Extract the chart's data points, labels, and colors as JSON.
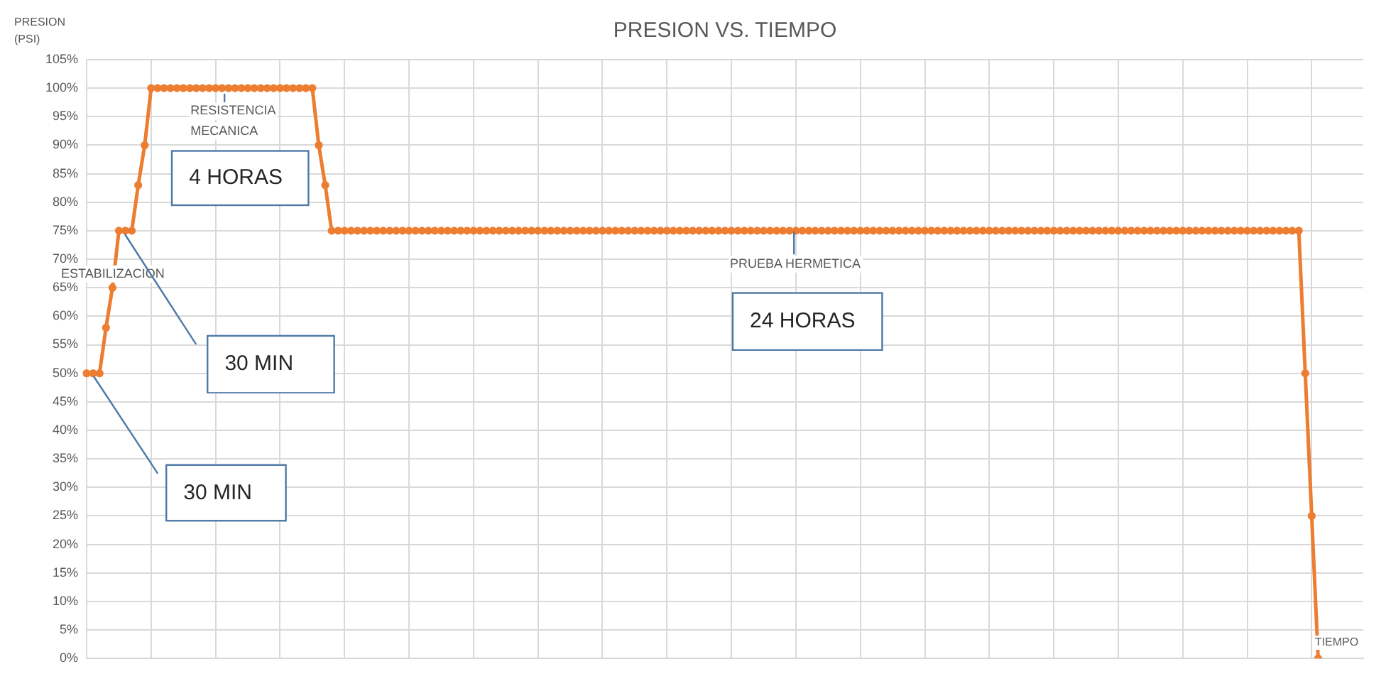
{
  "chart_data": {
    "type": "line",
    "title": "PRESION VS. TIEMPO",
    "ylabel": "PRESION (PSI)",
    "xlabel": "TIEMPO",
    "annotations": [
      "ESTABILIZACION",
      "RESISTENCIA MECANICA",
      "PRUEBA HERMETICA",
      "30 MIN",
      "30 MIN",
      "4 HORAS",
      "24 HORAS"
    ],
    "categories": [
      null,
      null,
      null,
      null,
      null,
      null,
      null,
      null,
      null,
      null,
      null,
      null,
      null,
      null,
      null,
      null,
      null,
      null,
      null,
      null,
      null,
      null,
      null,
      null,
      null,
      null,
      null,
      null,
      null,
      null,
      null,
      null,
      null,
      null,
      null,
      null,
      null,
      null,
      null,
      null,
      null,
      null,
      null,
      null,
      null,
      null,
      null,
      null,
      null,
      null,
      null,
      null,
      null,
      null,
      null,
      null,
      null,
      null,
      null,
      null,
      null,
      null,
      null,
      null,
      null,
      null,
      null,
      null,
      null,
      null,
      null,
      null,
      null,
      null,
      null,
      null,
      null,
      null,
      null,
      null,
      null,
      null,
      null,
      null,
      null,
      null,
      null,
      null,
      null,
      null,
      null,
      null,
      null,
      null,
      null,
      null,
      null,
      null,
      null,
      null,
      null,
      null,
      null,
      null,
      null,
      null,
      null,
      null,
      null,
      null,
      null,
      null,
      null,
      null,
      null,
      null,
      null,
      null,
      null,
      null,
      null,
      null,
      null,
      null,
      null,
      null,
      null,
      null,
      null,
      null,
      null,
      null,
      null,
      null,
      null,
      null,
      null,
      null,
      null,
      null,
      null,
      null,
      null,
      null,
      null,
      null,
      null,
      null,
      null,
      null,
      null,
      null,
      null,
      null,
      null,
      null,
      null,
      null,
      null,
      null,
      null,
      null,
      null,
      null,
      null,
      null,
      null,
      null,
      null,
      null,
      null,
      null,
      null,
      null,
      null,
      null,
      null,
      null,
      null,
      null,
      null,
      null,
      null,
      null,
      null,
      null,
      null,
      null,
      null,
      null,
      null,
      null,
      null,
      null,
      null,
      null,
      null,
      null,
      null
    ],
    "series": [
      {
        "color": "#ed7d31",
        "values": [
          50,
          50,
          50,
          58,
          65,
          75,
          75,
          75,
          83,
          90,
          100,
          100,
          100,
          100,
          100,
          100,
          100,
          100,
          100,
          100,
          100,
          100,
          100,
          100,
          100,
          100,
          100,
          100,
          100,
          100,
          100,
          100,
          100,
          100,
          100,
          100,
          90,
          83,
          75,
          75,
          75,
          75,
          75,
          75,
          75,
          75,
          75,
          75,
          75,
          75,
          75,
          75,
          75,
          75,
          75,
          75,
          75,
          75,
          75,
          75,
          75,
          75,
          75,
          75,
          75,
          75,
          75,
          75,
          75,
          75,
          75,
          75,
          75,
          75,
          75,
          75,
          75,
          75,
          75,
          75,
          75,
          75,
          75,
          75,
          75,
          75,
          75,
          75,
          75,
          75,
          75,
          75,
          75,
          75,
          75,
          75,
          75,
          75,
          75,
          75,
          75,
          75,
          75,
          75,
          75,
          75,
          75,
          75,
          75,
          75,
          75,
          75,
          75,
          75,
          75,
          75,
          75,
          75,
          75,
          75,
          75,
          75,
          75,
          75,
          75,
          75,
          75,
          75,
          75,
          75,
          75,
          75,
          75,
          75,
          75,
          75,
          75,
          75,
          75,
          75,
          75,
          75,
          75,
          75,
          75,
          75,
          75,
          75,
          75,
          75,
          75,
          75,
          75,
          75,
          75,
          75,
          75,
          75,
          75,
          75,
          75,
          75,
          75,
          75,
          75,
          75,
          75,
          75,
          75,
          75,
          75,
          75,
          75,
          75,
          75,
          75,
          75,
          75,
          75,
          75,
          75,
          75,
          75,
          75,
          75,
          75,
          75,
          75,
          75,
          50,
          25,
          0,
          null,
          null,
          null,
          null,
          null,
          null,
          null
        ]
      }
    ],
    "ylim": [
      0,
      105
    ],
    "yticks": [
      {
        "value": 0,
        "label": "0%"
      },
      {
        "value": 5,
        "label": "5%"
      },
      {
        "value": 10,
        "label": "10%"
      },
      {
        "value": 15,
        "label": "15%"
      },
      {
        "value": 20,
        "label": "20%"
      },
      {
        "value": 25,
        "label": "25%"
      },
      {
        "value": 30,
        "label": "30%"
      },
      {
        "value": 35,
        "label": "35%"
      },
      {
        "value": 40,
        "label": "40%"
      },
      {
        "value": 45,
        "label": "45%"
      },
      {
        "value": 50,
        "label": "50%"
      },
      {
        "value": 55,
        "label": "55%"
      },
      {
        "value": 60,
        "label": "60%"
      },
      {
        "value": 65,
        "label": "65%"
      },
      {
        "value": 70,
        "label": "70%"
      },
      {
        "value": 75,
        "label": "75%"
      },
      {
        "value": 80,
        "label": "80%"
      },
      {
        "value": 85,
        "label": "85%"
      },
      {
        "value": 90,
        "label": "90%"
      },
      {
        "value": 95,
        "label": "95%"
      },
      {
        "value": 100,
        "label": "100%"
      },
      {
        "value": 105,
        "label": "105%"
      }
    ],
    "grid": true,
    "marker": "circle",
    "line_style": "solid",
    "legend": false
  }
}
